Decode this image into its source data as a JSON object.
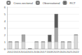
{
  "chart_data": {
    "type": "bar",
    "stacked": true,
    "legend": "top",
    "grid": true,
    "categories": [
      "2012",
      "2013",
      "2014",
      "2015",
      "2016",
      "2017",
      "2018",
      "2019",
      "2020",
      "2021",
      "2022"
    ],
    "series": [
      {
        "name": "Cross-sectional",
        "color": "#d9d9d9",
        "values": [
          1,
          1,
          1,
          0,
          1,
          1,
          1,
          1,
          1,
          1,
          2
        ]
      },
      {
        "name": "Observational",
        "color": "#a6a6a6",
        "values": [
          0,
          0,
          1,
          0,
          0,
          0,
          0,
          2,
          0,
          0,
          0
        ]
      },
      {
        "name": "RCT",
        "color": "#595959",
        "values": [
          0,
          0,
          0,
          0,
          0,
          0,
          1,
          2,
          0,
          0,
          0
        ]
      }
    ],
    "ylim": [
      0,
      6
    ],
    "yticks": [
      0,
      1,
      2,
      3,
      4,
      5,
      6
    ]
  }
}
